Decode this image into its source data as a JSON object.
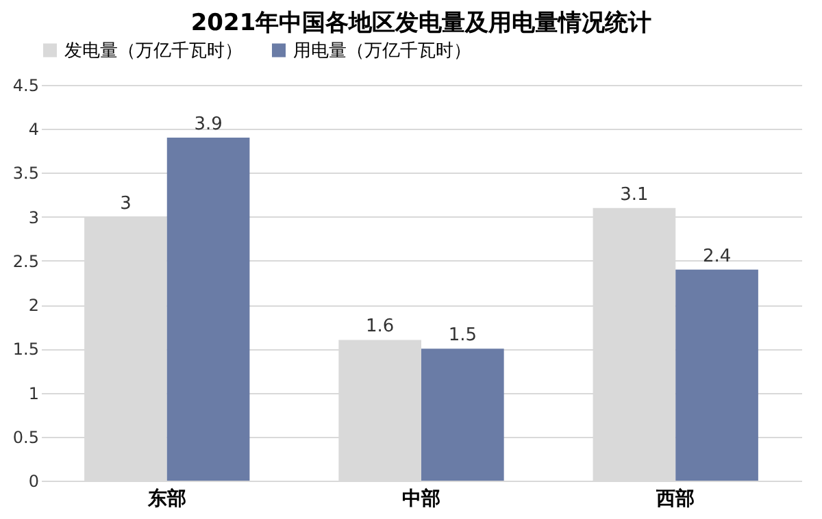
{
  "chart_data": {
    "type": "bar",
    "title": "2021年中国各地区发电量及用电量情况统计",
    "categories": [
      "东部",
      "中部",
      "西部"
    ],
    "series": [
      {
        "name": "发电量（万亿千瓦时）",
        "color": "#d9d9d9",
        "values": [
          3,
          1.6,
          3.1
        ]
      },
      {
        "name": "用电量（万亿千瓦时）",
        "color": "#6a7ca6",
        "values": [
          3.9,
          1.5,
          2.4
        ]
      }
    ],
    "ylim": [
      0,
      4.5
    ],
    "yticks": [
      0,
      0.5,
      1,
      1.5,
      2,
      2.5,
      3,
      3.5,
      4,
      4.5
    ],
    "grid": "y",
    "legend": "top",
    "data_labels": true
  }
}
